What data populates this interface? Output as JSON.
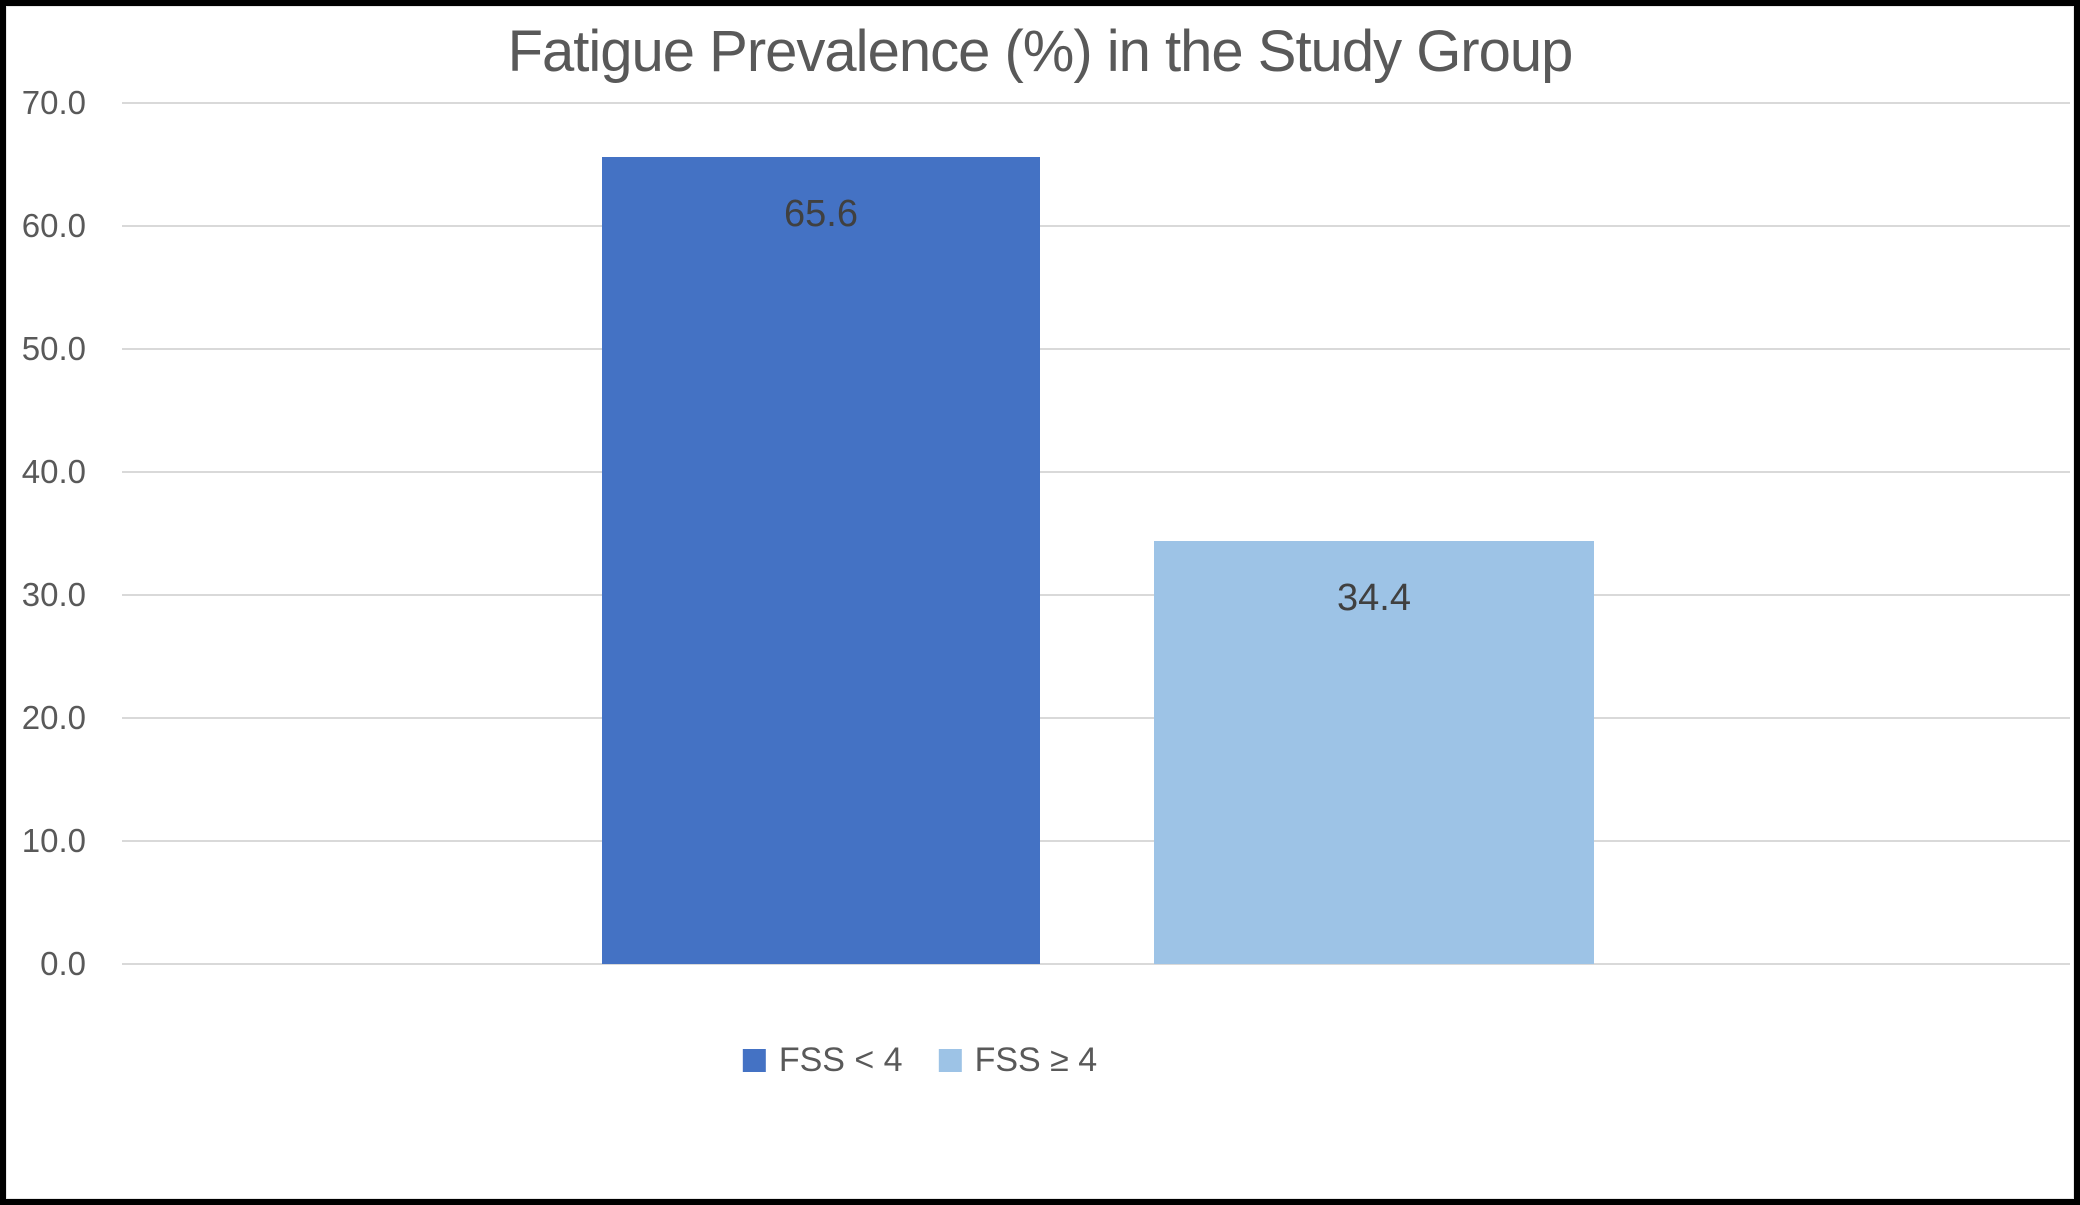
{
  "chart_data": {
    "type": "bar",
    "title": "Fatigue Prevalence (%) in the Study Group",
    "categories": [
      "FSS < 4",
      "FSS ≥ 4"
    ],
    "values": [
      65.6,
      34.4
    ],
    "value_labels": [
      "65.6",
      "34.4"
    ],
    "bar_colors": [
      "#4472C4",
      "#9DC3E6"
    ],
    "xlabel": "",
    "ylabel": "",
    "ylim": [
      0,
      70
    ],
    "grid": true,
    "yticks": [
      {
        "value": 70,
        "label": "70.0"
      },
      {
        "value": 60,
        "label": "60.0"
      },
      {
        "value": 50,
        "label": "50.0"
      },
      {
        "value": 40,
        "label": "40.0"
      },
      {
        "value": 30,
        "label": "30.0"
      },
      {
        "value": 20,
        "label": "20.0"
      },
      {
        "value": 10,
        "label": "10.0"
      },
      {
        "value": 0,
        "label": "0.0"
      }
    ],
    "legend": {
      "position": "bottom",
      "entries": [
        {
          "label": "FSS < 4",
          "color": "#4472C4"
        },
        {
          "label": "FSS ≥ 4",
          "color": "#9DC3E6"
        }
      ]
    }
  },
  "colors": {
    "title_text": "#595959",
    "tick_text": "#595959",
    "data_label_text": "#404040",
    "legend_text": "#595959",
    "gridline": "#D9D9D9",
    "background": "#FFFFFF",
    "frame_border": "#000000",
    "inner_border": "#E7E7E7"
  }
}
